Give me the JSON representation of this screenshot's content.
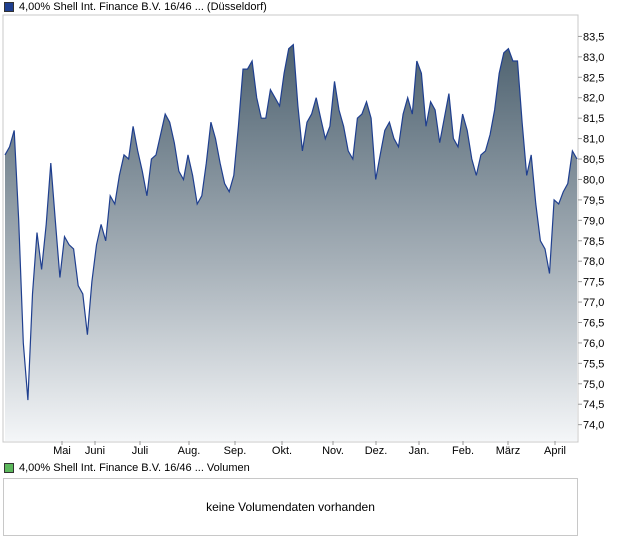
{
  "price_legend": {
    "label": "4,00% Shell Int. Finance B.V. 16/46 ... (Düsseldorf)",
    "color": "#1f3f8f"
  },
  "volume_legend": {
    "label": "4,00% Shell Int. Finance B.V. 16/46 ... Volumen",
    "color": "#5cb85c"
  },
  "volume_panel": {
    "message": "keine Volumendaten vorhanden"
  },
  "chart_data": {
    "type": "area",
    "title": "",
    "xlabel": "",
    "ylabel": "",
    "ylim": [
      73.6,
      84.0
    ],
    "grid": false,
    "line_color": "#1f3f8f",
    "fill_color_top": "#4e6270",
    "fill_color_bottom": "#f4f6f8",
    "x_ticks": [
      "Mai",
      "Juni",
      "Juli",
      "Aug.",
      "Sep.",
      "Okt.",
      "Nov.",
      "Dez.",
      "Jan.",
      "Feb.",
      "März",
      "April"
    ],
    "y_ticks": [
      "74,0",
      "74,5",
      "75,0",
      "75,5",
      "76,0",
      "76,5",
      "77,0",
      "77,5",
      "78,0",
      "78,5",
      "79,0",
      "79,5",
      "80,0",
      "80,5",
      "81,0",
      "81,5",
      "82,0",
      "82,5",
      "83,0",
      "83,5"
    ],
    "series": [
      {
        "values": [
          80.6,
          80.8,
          81.2,
          79.0,
          76.0,
          74.6,
          77.2,
          78.7,
          77.8,
          78.9,
          80.4,
          79.0,
          77.6,
          78.6,
          78.4,
          78.3,
          77.4,
          77.2,
          76.2,
          77.5,
          78.4,
          78.9,
          78.5,
          79.6,
          79.4,
          80.1,
          80.6,
          80.5,
          81.3,
          80.7,
          80.2,
          79.6,
          80.5,
          80.6,
          81.1,
          81.6,
          81.4,
          80.9,
          80.2,
          80.0,
          80.6,
          80.1,
          79.4,
          79.6,
          80.4,
          81.4,
          81.0,
          80.4,
          79.9,
          79.7,
          80.1,
          81.3,
          82.7,
          82.7,
          82.9,
          82.0,
          81.5,
          81.5,
          82.2,
          82.0,
          81.8,
          82.6,
          83.2,
          83.3,
          81.8,
          80.7,
          81.4,
          81.6,
          82.0,
          81.5,
          81.0,
          81.3,
          82.4,
          81.7,
          81.3,
          80.7,
          80.5,
          81.5,
          81.6,
          81.9,
          81.5,
          80.0,
          80.6,
          81.2,
          81.4,
          81.0,
          80.8,
          81.6,
          82.0,
          81.6,
          82.9,
          82.6,
          81.3,
          81.9,
          81.7,
          80.9,
          81.5,
          82.1,
          81.0,
          80.8,
          81.6,
          81.2,
          80.5,
          80.1,
          80.6,
          80.7,
          81.1,
          81.7,
          82.6,
          83.1,
          83.2,
          82.9,
          82.9,
          81.4,
          80.1,
          80.6,
          79.4,
          78.5,
          78.3,
          77.7,
          79.5,
          79.4,
          79.7,
          79.9,
          80.7,
          80.5
        ]
      }
    ]
  }
}
